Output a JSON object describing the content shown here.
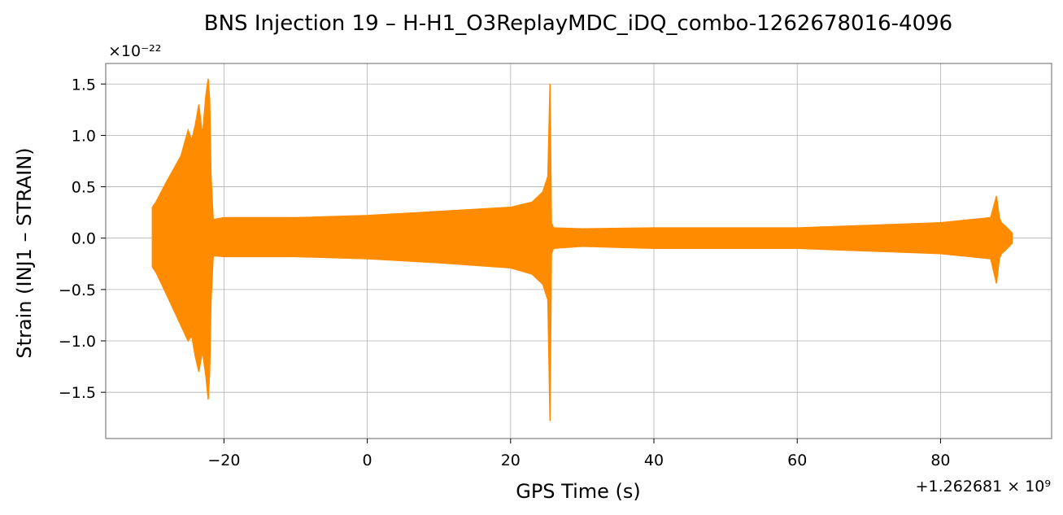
{
  "chart_data": {
    "type": "line",
    "title": "BNS Injection 19 – H-H1_O3ReplayMDC_iDQ_combo-1262678016-4096",
    "xlabel": "GPS Time (s)",
    "ylabel": "Strain (INJ1 – STRAIN)",
    "x_offset_text": "+1.262681 × 10⁹",
    "y_multiplier_text": "×10⁻²²",
    "xlim": [
      -36.5,
      95.5
    ],
    "ylim": [
      -1.95,
      1.7
    ],
    "x_ticks": [
      -20,
      0,
      20,
      40,
      60,
      80
    ],
    "x_tick_labels": [
      "−20",
      "0",
      "20",
      "40",
      "60",
      "80"
    ],
    "y_ticks": [
      -1.5,
      -1.0,
      -0.5,
      0.0,
      0.5,
      1.0,
      1.5
    ],
    "y_tick_labels": [
      "−1.5",
      "−1.0",
      "−0.5",
      "0.0",
      "0.5",
      "1.0",
      "1.5"
    ],
    "grid": true,
    "line_color": "#ff8c00",
    "series": [
      {
        "upper_envelope": {
          "x": [
            -30,
            -29.5,
            -28,
            -26,
            -25,
            -24.5,
            -24,
            -23.5,
            -23,
            -22.5,
            -22.2,
            -22.0,
            -21.8,
            -21.5,
            -20,
            -10,
            0,
            10,
            20,
            23,
            24.5,
            25.2,
            25.5,
            25.7,
            26,
            30,
            40,
            60,
            80,
            87,
            87.8,
            88.2,
            88.5,
            89,
            90
          ],
          "y": [
            0.3,
            0.35,
            0.55,
            0.8,
            1.05,
            0.95,
            1.1,
            1.3,
            1.0,
            1.4,
            1.55,
            1.35,
            0.6,
            0.18,
            0.2,
            0.2,
            0.22,
            0.26,
            0.3,
            0.35,
            0.45,
            0.6,
            1.5,
            0.15,
            0.1,
            0.09,
            0.1,
            0.1,
            0.15,
            0.2,
            0.41,
            0.2,
            0.15,
            0.12,
            0.05
          ]
        },
        "lower_envelope": {
          "x": [
            -30,
            -29.5,
            -28,
            -26,
            -25,
            -24.5,
            -24,
            -23.5,
            -23,
            -22.5,
            -22.2,
            -22.0,
            -21.8,
            -21.5,
            -20,
            -10,
            0,
            10,
            20,
            23,
            24.5,
            25.2,
            25.5,
            25.7,
            26,
            30,
            40,
            60,
            80,
            87,
            87.8,
            88.2,
            88.5,
            89,
            90
          ],
          "y": [
            -0.28,
            -0.33,
            -0.55,
            -0.85,
            -1.0,
            -0.95,
            -1.15,
            -1.3,
            -1.1,
            -1.35,
            -1.57,
            -1.3,
            -0.6,
            -0.17,
            -0.18,
            -0.18,
            -0.2,
            -0.24,
            -0.29,
            -0.35,
            -0.45,
            -0.6,
            -1.78,
            -0.15,
            -0.1,
            -0.08,
            -0.1,
            -0.1,
            -0.15,
            -0.2,
            -0.44,
            -0.2,
            -0.15,
            -0.12,
            -0.05
          ]
        }
      }
    ]
  }
}
